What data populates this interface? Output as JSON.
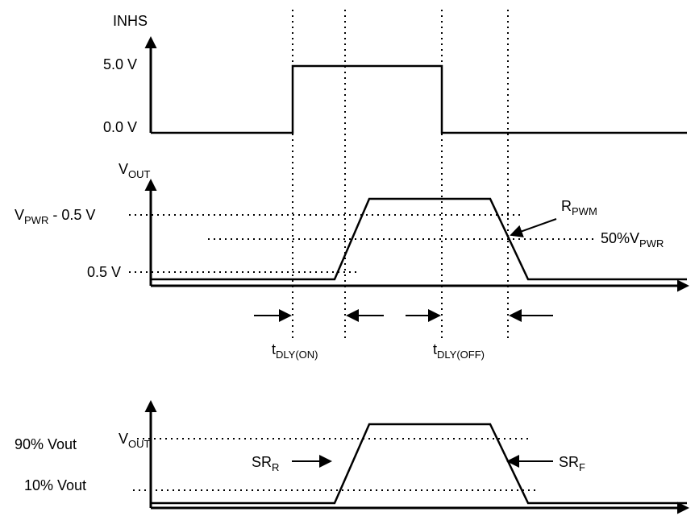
{
  "panels": [
    {
      "axis_label": "INHS",
      "levels": [
        "5.0 V",
        "0.0 V"
      ]
    },
    {
      "axis_label": {
        "base": "V",
        "sub": "OUT"
      },
      "levels": [
        {
          "base": "V",
          "sub": "PWR",
          "tail": " - 0.5 V"
        },
        "0.5 V"
      ],
      "annotations": [
        {
          "base": "R",
          "sub": "PWM"
        },
        {
          "base": "50%V",
          "sub": "PWR"
        }
      ],
      "timings": [
        {
          "base": "t",
          "sub": "DLY(ON)"
        },
        {
          "base": "t",
          "sub": "DLY(OFF)"
        }
      ]
    },
    {
      "axis_label": {
        "base": "V",
        "sub": "OUT"
      },
      "levels": [
        "90% Vout",
        "10% Vout"
      ],
      "annotations": [
        {
          "base": "SR",
          "sub": "R"
        },
        {
          "base": "SR",
          "sub": "F"
        }
      ]
    }
  ]
}
